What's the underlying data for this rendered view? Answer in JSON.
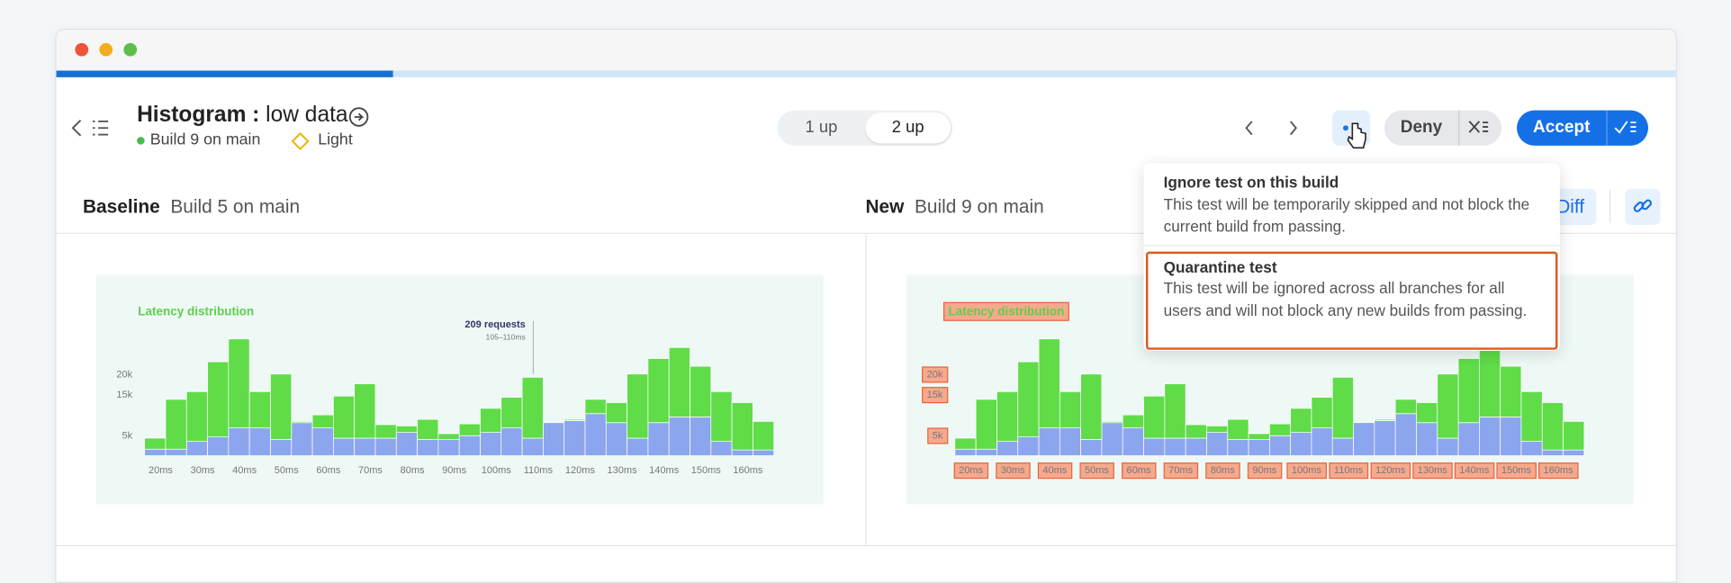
{
  "header": {
    "title": "Histogram :",
    "subtitle": "low data",
    "build": "Build 9 on main",
    "mode": "Light"
  },
  "view_toggle": [
    "1 up",
    "2 up"
  ],
  "actions": {
    "deny": "Deny",
    "accept": "Accept",
    "diff": "Diff"
  },
  "menu": [
    {
      "title": "Ignore test on this build",
      "description": "This test will be temporarily skipped and not block the current build from passing."
    },
    {
      "title": "Quarantine test",
      "description": "This test will be ignored across all branches for all users and will not block any new builds from passing."
    }
  ],
  "panels": [
    {
      "label": "Baseline",
      "build": "Build 5 on main"
    },
    {
      "label": "New",
      "build": "Build 9 on main"
    }
  ],
  "chart_data": {
    "type": "bar",
    "stacked": true,
    "title": "Latency distribution",
    "annotation": {
      "title": "209 requests",
      "subtitle": "105–110ms"
    },
    "categories": [
      "20ms",
      null,
      "30ms",
      null,
      "40ms",
      null,
      "50ms",
      null,
      "60ms",
      null,
      "70ms",
      null,
      "80ms",
      null,
      "90ms",
      null,
      "100ms",
      null,
      "110ms",
      null,
      "120ms",
      null,
      "130ms",
      null,
      "140ms",
      null,
      "150ms",
      null,
      "160ms",
      null
    ],
    "series": [
      {
        "color": "#8ba6ef",
        "values": [
          1600,
          1600,
          3500,
          4600,
          6800,
          6800,
          4000,
          8100,
          6800,
          4300,
          4300,
          4300,
          5700,
          4000,
          4000,
          4900,
          5700,
          6800,
          4300,
          8100,
          8600,
          10300,
          8100,
          4300,
          8100,
          9500,
          9500,
          3500,
          1400,
          1400
        ]
      },
      {
        "color": "#5fdc48",
        "values": [
          2700,
          12200,
          12200,
          18400,
          21800,
          8900,
          16000,
          300,
          3200,
          10300,
          13300,
          3300,
          1600,
          4900,
          1400,
          2900,
          5900,
          7500,
          14900,
          0,
          300,
          3500,
          4900,
          15700,
          15700,
          17000,
          12400,
          12200,
          11600,
          7000
        ]
      }
    ],
    "ylim": [
      0,
      30000
    ],
    "yticks": [
      {
        "value": 20000,
        "label": "20k"
      },
      {
        "value": 15000,
        "label": "15k"
      },
      {
        "value": 5000,
        "label": "5k"
      }
    ],
    "grid": false
  }
}
